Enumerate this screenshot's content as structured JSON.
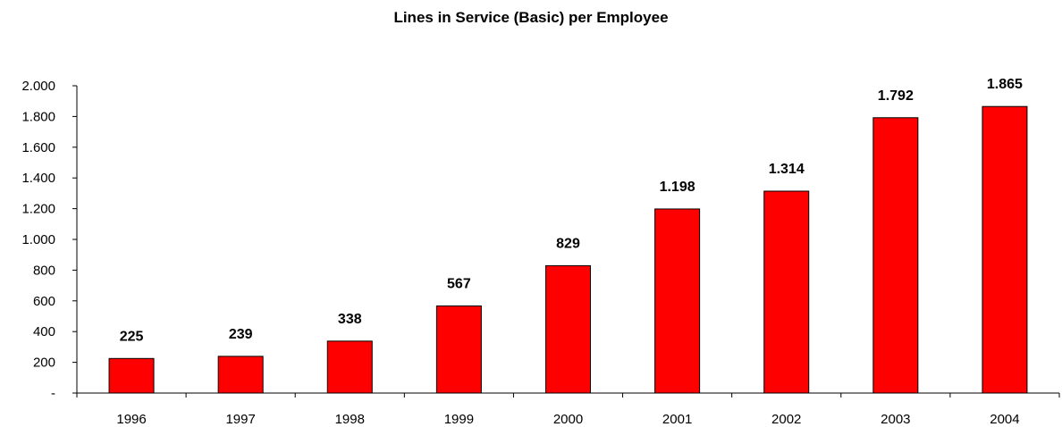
{
  "chart_data": {
    "type": "bar",
    "title": "Lines in Service (Basic) per Employee",
    "xlabel": "",
    "ylabel": "",
    "categories": [
      "1996",
      "1997",
      "1998",
      "1999",
      "2000",
      "2001",
      "2002",
      "2003",
      "2004"
    ],
    "values": [
      225,
      239,
      338,
      567,
      829,
      1198,
      1314,
      1792,
      1865
    ],
    "value_labels": [
      "225",
      "239",
      "338",
      "567",
      "829",
      "1.198",
      "1.314",
      "1.792",
      "1.865"
    ],
    "ylim": [
      0,
      2000
    ],
    "yticks": [
      0,
      200,
      400,
      600,
      800,
      1000,
      1200,
      1400,
      1600,
      1800,
      2000
    ],
    "ytick_labels": [
      "-",
      "200",
      "400",
      "600",
      "800",
      "1.000",
      "1.200",
      "1.400",
      "1.600",
      "1.800",
      "2.000"
    ],
    "grid": false,
    "legend": "none",
    "bar_color": "#ff0000",
    "bar_edge_color": "#000000"
  }
}
